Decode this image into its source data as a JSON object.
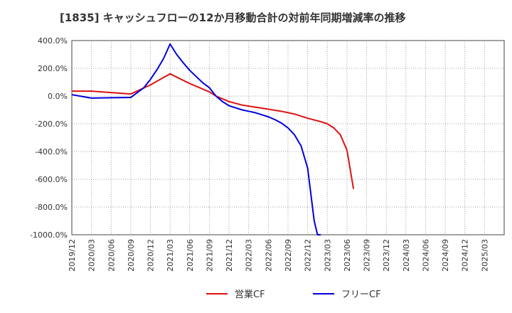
{
  "chart_data": {
    "type": "line",
    "title": "[1835]  キャッシュフローの12か月移動合計の対前年同期増減率の推移",
    "xlabel": "",
    "ylabel": "",
    "ylim": [
      -1000,
      400
    ],
    "yticks": [
      400,
      200,
      0,
      -200,
      -400,
      -600,
      -800,
      -1000
    ],
    "ytick_labels": [
      "400.0%",
      "200.0%",
      "0.0%",
      "-200.0%",
      "-400.0%",
      "-600.0%",
      "-800.0%",
      "-1000.0%"
    ],
    "x_start": "2019/12",
    "x_months": 66,
    "xtick_labels": [
      "2019/12",
      "2020/03",
      "2020/06",
      "2020/09",
      "2020/12",
      "2021/03",
      "2021/06",
      "2021/09",
      "2021/12",
      "2022/03",
      "2022/06",
      "2022/09",
      "2022/12",
      "2023/03",
      "2023/06",
      "2023/09",
      "2023/12",
      "2024/03",
      "2024/06",
      "2024/09",
      "2024/12",
      "2025/03"
    ],
    "grid": true,
    "legend_position": "bottom",
    "series": [
      {
        "name": "営業CF",
        "color": "#dd1111",
        "x": [
          0,
          3,
          6,
          9,
          12,
          15,
          18,
          21,
          22,
          24,
          26,
          28,
          30,
          32,
          34,
          36,
          38,
          39,
          40,
          41,
          42,
          43
        ],
        "values": [
          35,
          35,
          25,
          15,
          80,
          160,
          90,
          30,
          0,
          -40,
          -65,
          -80,
          -95,
          -110,
          -130,
          -160,
          -185,
          -200,
          -230,
          -280,
          -390,
          -670
        ]
      },
      {
        "name": "フリーCF",
        "color": "#0000dd",
        "x": [
          0,
          3,
          6,
          9,
          11,
          12,
          13,
          14,
          15,
          16,
          17,
          18,
          19,
          20,
          21,
          22,
          23,
          24,
          25,
          26,
          27,
          28,
          29,
          30,
          31,
          32,
          33,
          34,
          35,
          36,
          37,
          37.5,
          38
        ],
        "values": [
          10,
          -15,
          -12,
          -10,
          60,
          120,
          190,
          270,
          375,
          300,
          240,
          185,
          140,
          95,
          60,
          0,
          -40,
          -70,
          -85,
          -100,
          -110,
          -120,
          -135,
          -150,
          -170,
          -195,
          -230,
          -280,
          -360,
          -520,
          -900,
          -1000,
          -1000
        ]
      }
    ]
  }
}
